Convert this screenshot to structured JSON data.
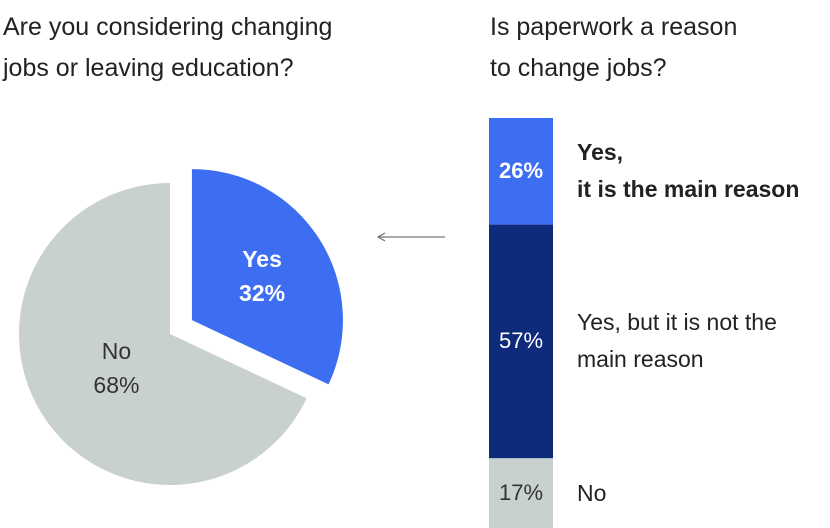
{
  "chart_data": [
    {
      "type": "pie",
      "title_lines": [
        "Are you considering changing",
        "jobs or leaving education?"
      ],
      "slices": [
        {
          "label": "Yes",
          "value": 32,
          "value_label": "32%",
          "color": "#3d6ef2",
          "exploded": true
        },
        {
          "label": "No",
          "value": 68,
          "value_label": "68%",
          "color": "#c9d1d0",
          "exploded": false
        }
      ]
    },
    {
      "type": "bar",
      "stacked": true,
      "orientation": "vertical",
      "title_lines": [
        "Is paperwork a reason",
        "to change jobs?"
      ],
      "segments": [
        {
          "label_lines": [
            "Yes,",
            "it is the main reason"
          ],
          "value": 26,
          "value_label": "26%",
          "color": "#3d6ef2",
          "text_color": "#ffffff",
          "bold": true
        },
        {
          "label_lines": [
            "Yes, but it is not the",
            "main reason"
          ],
          "value": 57,
          "value_label": "57%",
          "color": "#0e2a7a",
          "text_color": "#ffffff",
          "bold": false
        },
        {
          "label_lines": [
            "No"
          ],
          "value": 17,
          "value_label": "17%",
          "color": "#c9d1d0",
          "text_color": "#333333",
          "bold": false
        }
      ]
    }
  ],
  "connector": {
    "direction": "left",
    "color": "#777777"
  }
}
